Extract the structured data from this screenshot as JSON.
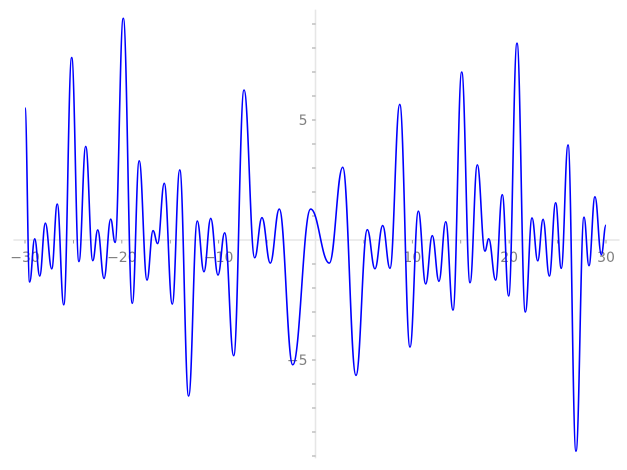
{
  "chart_data": {
    "type": "line",
    "title": "",
    "xlabel": "",
    "ylabel": "",
    "xlim": [
      -31.2,
      31.4
    ],
    "ylim": [
      -9.1,
      9.6
    ],
    "grid": false,
    "axes_position": "centered at origin",
    "x_tick_labels": [
      "−30",
      "−20",
      "−10",
      "10",
      "20",
      "30"
    ],
    "x_tick_values": [
      -30,
      -20,
      -10,
      10,
      20,
      30
    ],
    "y_tick_labels": [
      "5",
      "−5"
    ],
    "y_tick_values": [
      5,
      -5
    ],
    "series": [
      {
        "color": "#0000ff",
        "x": [
          -30.0,
          -29.52,
          -29.0,
          -28.48,
          -27.9,
          -27.24,
          -26.67,
          -26.0,
          -25.18,
          -24.43,
          -23.73,
          -23.0,
          -22.49,
          -21.84,
          -21.15,
          -20.7,
          -19.85,
          -18.92,
          -18.21,
          -17.4,
          -16.78,
          -16.3,
          -15.62,
          -14.79,
          -14.02,
          -13.1,
          -12.21,
          -11.52,
          -10.82,
          -10.07,
          -9.38,
          -8.45,
          -7.38,
          -6.28,
          -5.53,
          -4.67,
          -3.74,
          -2.35,
          -0.5,
          1.43,
          2.81,
          4.18,
          5.35,
          6.14,
          6.94,
          7.69,
          8.7,
          9.76,
          10.62,
          11.38,
          12.06,
          12.75,
          13.45,
          14.2,
          15.1,
          15.96,
          16.71,
          17.5,
          17.89,
          18.6,
          19.29,
          19.95,
          20.81,
          21.67,
          22.36,
          22.95,
          23.5,
          24.15,
          24.8,
          25.38,
          26.08,
          26.9,
          27.73,
          28.24,
          28.86,
          29.52,
          30.0
        ],
        "y": [
          5.5,
          -1.75,
          0.05,
          -1.5,
          0.7,
          -1.2,
          1.5,
          -2.7,
          7.6,
          -0.9,
          3.9,
          -0.86,
          0.42,
          -1.6,
          0.87,
          -0.1,
          9.24,
          -2.64,
          3.3,
          -1.67,
          0.39,
          -0.15,
          2.36,
          -2.67,
          2.92,
          -6.5,
          0.79,
          -1.32,
          0.9,
          -1.46,
          0.3,
          -4.82,
          6.25,
          -0.74,
          0.93,
          -0.96,
          1.29,
          -5.2,
          1.29,
          -0.96,
          3.03,
          -5.64,
          0.43,
          -1.2,
          0.6,
          -1.18,
          5.65,
          -4.46,
          1.2,
          -1.83,
          0.18,
          -1.72,
          0.76,
          -2.92,
          7.0,
          -1.78,
          3.13,
          -0.46,
          0.05,
          -1.67,
          1.89,
          -2.33,
          8.2,
          -3.0,
          0.92,
          -0.87,
          0.86,
          -1.5,
          1.55,
          -1.18,
          3.96,
          -8.8,
          0.95,
          -1.07,
          1.8,
          -0.61,
          0.62
        ]
      }
    ]
  }
}
